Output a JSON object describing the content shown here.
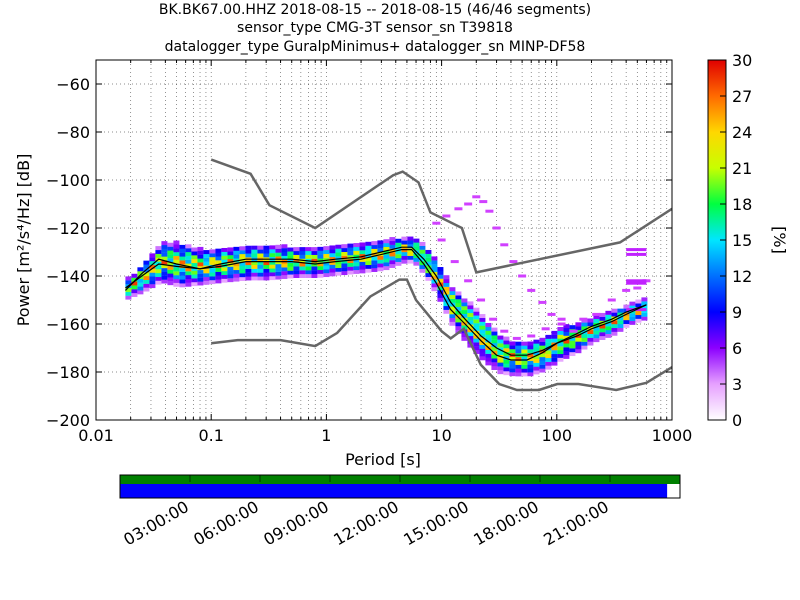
{
  "title_lines": [
    "BK.BK67.00.HHZ   2018-08-15 -- 2018-08-15  (46/46 segments)",
    "sensor_type CMG-3T sensor_sn T39818",
    "datalogger_type GuralpMinimus+ datalogger_sn MINP-DF58"
  ],
  "chart_data": {
    "type": "heatmap",
    "xlabel": "Period [s]",
    "ylabel": "Power [m²/s⁴/Hz] [dB]",
    "xscale": "log",
    "xlim": [
      0.01,
      1000
    ],
    "ylim": [
      -200,
      -50
    ],
    "xticks": [
      0.01,
      0.1,
      1,
      10,
      100,
      1000
    ],
    "xtick_labels": [
      "0.01",
      "0.1",
      "1",
      "10",
      "100",
      "1000"
    ],
    "yticks": [
      -200,
      -180,
      -160,
      -140,
      -120,
      -100,
      -80,
      -60
    ],
    "ytick_labels": [
      "−200",
      "−180",
      "−160",
      "−140",
      "−120",
      "−100",
      "−80",
      "−60"
    ],
    "grid": true,
    "colorbar": {
      "label": "[%]",
      "range": [
        0,
        30
      ],
      "ticks": [
        0,
        3,
        6,
        9,
        12,
        15,
        18,
        21,
        24,
        27,
        30
      ],
      "colormap": "pqlx"
    },
    "noise_models": [
      {
        "role": "upper",
        "x": [
          0.1,
          0.22,
          0.32,
          0.8,
          3.8,
          4.6,
          6.3,
          8,
          15,
          20,
          354,
          1000
        ],
        "y": [
          -91.5,
          -97.4,
          -110.5,
          -120,
          -98,
          -96.5,
          -101,
          -113.5,
          -120,
          -138.5,
          -126,
          -112
        ]
      },
      {
        "role": "lower",
        "x": [
          0.1,
          0.17,
          0.4,
          0.8,
          1.24,
          2.4,
          4.3,
          5,
          6,
          10,
          12,
          15.6,
          21.9,
          31.6,
          45,
          70,
          101,
          154,
          328,
          600,
          1000
        ],
        "y": [
          -168,
          -166.7,
          -166.7,
          -169.2,
          -163.7,
          -148.6,
          -141.5,
          -141.5,
          -150,
          -163,
          -166,
          -162,
          -177,
          -185,
          -187.5,
          -187.5,
          -185,
          -185,
          -187.5,
          -184.5,
          -178
        ]
      }
    ],
    "mean_curve": {
      "x": [
        0.018,
        0.025,
        0.035,
        0.05,
        0.08,
        0.12,
        0.2,
        0.3,
        0.5,
        0.8,
        1.2,
        2,
        3,
        4.5,
        5.5,
        7,
        9,
        12,
        16,
        22,
        30,
        40,
        55,
        75,
        100,
        150,
        200,
        300,
        400,
        600
      ],
      "y": [
        -146,
        -139,
        -133,
        -135,
        -137,
        -136,
        -134,
        -134,
        -134,
        -135,
        -134,
        -133,
        -131,
        -129,
        -129,
        -135,
        -143,
        -154,
        -160,
        -167,
        -173,
        -175,
        -175,
        -172,
        -168,
        -165,
        -162,
        -159,
        -156,
        -152
      ]
    },
    "mode_curve": {
      "x": [
        0.018,
        0.025,
        0.035,
        0.05,
        0.08,
        0.12,
        0.2,
        0.3,
        0.5,
        0.8,
        1.2,
        2,
        3,
        4.5,
        5.5,
        7,
        9,
        12,
        16,
        22,
        30,
        40,
        55,
        75,
        100,
        150,
        200,
        300,
        400,
        600
      ],
      "y": [
        -145,
        -140,
        -135,
        -136,
        -137,
        -135,
        -133,
        -133,
        -133,
        -134,
        -133,
        -132,
        -130,
        -128,
        -128,
        -133,
        -140,
        -151,
        -158,
        -165,
        -170,
        -173,
        -173,
        -171,
        -168,
        -164,
        -161,
        -158,
        -155,
        -152
      ]
    },
    "pdf_trend": {
      "x": [
        0.018,
        0.025,
        0.035,
        0.05,
        0.08,
        0.12,
        0.2,
        0.3,
        0.5,
        0.8,
        1.2,
        2,
        3,
        4.5,
        5.5,
        7,
        9,
        12,
        16,
        22,
        30,
        40,
        55,
        75,
        100,
        150,
        200,
        300,
        400,
        600
      ],
      "y": [
        -145,
        -140,
        -134,
        -135,
        -136,
        -135,
        -134,
        -134,
        -134,
        -134,
        -133,
        -132,
        -131,
        -129,
        -129,
        -134,
        -142,
        -153,
        -159,
        -166,
        -172,
        -174,
        -174,
        -172,
        -168,
        -165,
        -162,
        -159,
        -156,
        -153
      ],
      "spread_db": [
        4,
        6,
        8,
        9,
        7,
        7,
        7,
        7,
        6,
        6,
        6,
        6,
        6,
        5,
        5,
        6,
        7,
        8,
        9,
        9,
        8,
        7,
        7,
        7,
        7,
        6,
        5,
        5,
        4,
        4
      ]
    },
    "outliers": {
      "x": [
        9,
        11,
        14,
        17,
        20,
        23,
        26,
        30,
        35,
        42,
        50,
        60,
        75,
        90,
        110,
        140,
        170,
        220,
        300,
        400,
        500,
        600
      ],
      "y": [
        -118,
        -115,
        -112,
        -110,
        -107,
        -109,
        -113,
        -120,
        -127,
        -134,
        -140,
        -146,
        -151,
        -156,
        -160,
        -163,
        -158,
        -156,
        -150,
        -146,
        -145,
        -142
      ]
    },
    "outliers2": {
      "x": [
        10,
        13,
        17,
        22,
        28,
        35,
        45,
        60,
        80,
        110
      ],
      "y": [
        -125,
        -134,
        -142,
        -150,
        -158,
        -163,
        -166,
        -165,
        -162,
        -158
      ]
    },
    "short_bars": {
      "x0": [
        400,
        400,
        400,
        400,
        400
      ],
      "x1": [
        600,
        600,
        600,
        600,
        600
      ],
      "y": [
        -129,
        -131,
        -142,
        -143,
        -154
      ]
    }
  },
  "timeline": {
    "tick_labels": [
      "03:00:00",
      "06:00:00",
      "09:00:00",
      "12:00:00",
      "15:00:00",
      "18:00:00",
      "21:00:00"
    ],
    "colors": {
      "availability": "#008000",
      "used": "#0000ff"
    },
    "data_fraction": 1.0,
    "used_fraction": 0.977
  }
}
